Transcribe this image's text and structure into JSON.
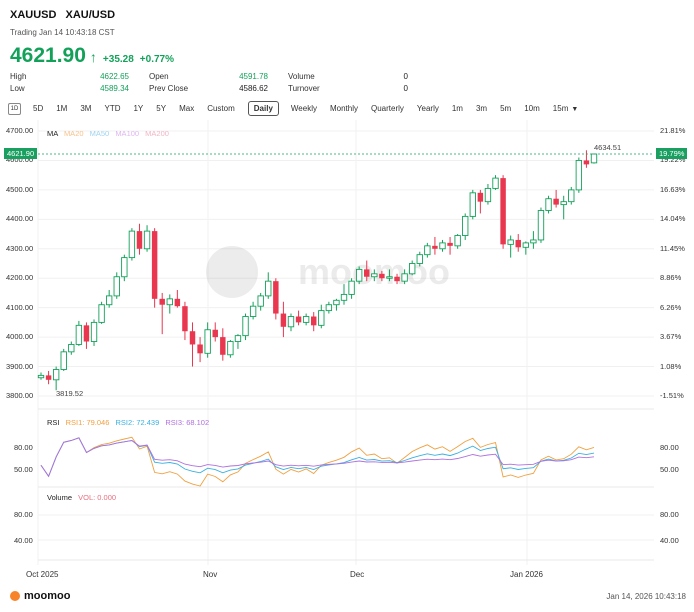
{
  "header": {
    "symbol": "XAUUSD",
    "name": "XAU/USD",
    "trading_status": "Trading Jan 14 10:43:18 CST",
    "price": "4621.90",
    "change": "+35.28",
    "change_pct": "+0.77%"
  },
  "stats": {
    "high_label": "High",
    "high": "4622.65",
    "low_label": "Low",
    "low": "4589.34",
    "open_label": "Open",
    "open": "4591.78",
    "prev_close_label": "Prev Close",
    "prev_close": "4586.62",
    "volume_label": "Volume",
    "volume": "0",
    "turnover_label": "Turnover",
    "turnover": "0"
  },
  "tabs": {
    "icon": "1D",
    "items": [
      "5D",
      "1M",
      "3M",
      "YTD",
      "1Y",
      "5Y",
      "Max",
      "Custom",
      "Daily",
      "Weekly",
      "Monthly",
      "Quarterly",
      "Yearly",
      "1m",
      "3m",
      "5m",
      "10m",
      "15m"
    ],
    "active": "Daily"
  },
  "main_chart": {
    "ma_label": "MA",
    "ma_items": [
      "MA20",
      "MA50",
      "MA100",
      "MA200"
    ],
    "y_ticks": [
      "4700.00",
      "4600.00",
      "4500.00",
      "4400.00",
      "4300.00",
      "4200.00",
      "4100.00",
      "4000.00",
      "3900.00",
      "3800.00"
    ],
    "right_ticks": [
      "21.81%",
      "19.22%",
      "16.63%",
      "14.04%",
      "11.45%",
      "8.86%",
      "6.26%",
      "3.67%",
      "1.08%",
      "-1.51%"
    ],
    "current_price_tag": "4621.90",
    "current_pct_tag": "19.79%",
    "high_marker": "4634.51",
    "low_marker": "3819.52",
    "watermark": "moomoo"
  },
  "rsi": {
    "label": "RSI",
    "rsi1": "RSI1: 79.046",
    "rsi2": "RSI2: 72.439",
    "rsi3": "RSI3: 68.102",
    "ticks": [
      "80.00",
      "50.00"
    ],
    "right_ticks": [
      "80.00",
      "50.00"
    ]
  },
  "volume": {
    "label": "Volume",
    "vol": "VOL: 0.000",
    "ticks": [
      "80.00",
      "40.00"
    ],
    "right_ticks": [
      "80.00",
      "40.00"
    ]
  },
  "x_axis": [
    "Oct 2025",
    "Nov",
    "Dec",
    "Jan 2026"
  ],
  "footer": {
    "brand": "moomoo",
    "timestamp": "Jan 14, 2026 10:43:18"
  },
  "colors": {
    "up": "#13a15a",
    "down": "#e8374f",
    "rsi1": "#f0a040",
    "rsi2": "#3ab0e0",
    "rsi3": "#b070e0"
  },
  "chart_data": {
    "type": "candlestick",
    "ylim": [
      3780,
      4720
    ],
    "candles": [
      {
        "o": 3862,
        "h": 3880,
        "l": 3855,
        "c": 3870
      },
      {
        "o": 3870,
        "h": 3885,
        "l": 3840,
        "c": 3855
      },
      {
        "o": 3855,
        "h": 3900,
        "l": 3819.52,
        "c": 3890
      },
      {
        "o": 3890,
        "h": 3960,
        "l": 3885,
        "c": 3950
      },
      {
        "o": 3950,
        "h": 3985,
        "l": 3940,
        "c": 3975
      },
      {
        "o": 3975,
        "h": 4055,
        "l": 3970,
        "c": 4040
      },
      {
        "o": 4040,
        "h": 4050,
        "l": 3960,
        "c": 3985
      },
      {
        "o": 3985,
        "h": 4060,
        "l": 3970,
        "c": 4050
      },
      {
        "o": 4050,
        "h": 4120,
        "l": 4045,
        "c": 4110
      },
      {
        "o": 4110,
        "h": 4160,
        "l": 4100,
        "c": 4140
      },
      {
        "o": 4140,
        "h": 4220,
        "l": 4130,
        "c": 4205
      },
      {
        "o": 4205,
        "h": 4280,
        "l": 4190,
        "c": 4270
      },
      {
        "o": 4270,
        "h": 4370,
        "l": 4260,
        "c": 4360
      },
      {
        "o": 4360,
        "h": 4385,
        "l": 4280,
        "c": 4300
      },
      {
        "o": 4300,
        "h": 4380,
        "l": 4290,
        "c": 4360
      },
      {
        "o": 4360,
        "h": 4370,
        "l": 4100,
        "c": 4130
      },
      {
        "o": 4130,
        "h": 4150,
        "l": 4010,
        "c": 4110
      },
      {
        "o": 4110,
        "h": 4145,
        "l": 4080,
        "c": 4130
      },
      {
        "o": 4130,
        "h": 4160,
        "l": 4100,
        "c": 4105
      },
      {
        "o": 4105,
        "h": 4120,
        "l": 3990,
        "c": 4020
      },
      {
        "o": 4020,
        "h": 4050,
        "l": 3900,
        "c": 3975
      },
      {
        "o": 3975,
        "h": 4000,
        "l": 3915,
        "c": 3945
      },
      {
        "o": 3945,
        "h": 4050,
        "l": 3930,
        "c": 4025
      },
      {
        "o": 4025,
        "h": 4050,
        "l": 3985,
        "c": 4000
      },
      {
        "o": 4000,
        "h": 4030,
        "l": 3920,
        "c": 3940
      },
      {
        "o": 3940,
        "h": 3990,
        "l": 3930,
        "c": 3985
      },
      {
        "o": 3985,
        "h": 4010,
        "l": 3960,
        "c": 4005
      },
      {
        "o": 4005,
        "h": 4080,
        "l": 3990,
        "c": 4070
      },
      {
        "o": 4070,
        "h": 4120,
        "l": 4060,
        "c": 4105
      },
      {
        "o": 4105,
        "h": 4150,
        "l": 4090,
        "c": 4140
      },
      {
        "o": 4140,
        "h": 4220,
        "l": 4130,
        "c": 4190
      },
      {
        "o": 4190,
        "h": 4200,
        "l": 4060,
        "c": 4080
      },
      {
        "o": 4080,
        "h": 4120,
        "l": 4000,
        "c": 4035
      },
      {
        "o": 4035,
        "h": 4080,
        "l": 4020,
        "c": 4070
      },
      {
        "o": 4070,
        "h": 4090,
        "l": 4040,
        "c": 4050
      },
      {
        "o": 4050,
        "h": 4080,
        "l": 4040,
        "c": 4070
      },
      {
        "o": 4070,
        "h": 4085,
        "l": 4020,
        "c": 4040
      },
      {
        "o": 4040,
        "h": 4110,
        "l": 4030,
        "c": 4090
      },
      {
        "o": 4090,
        "h": 4120,
        "l": 4080,
        "c": 4110
      },
      {
        "o": 4110,
        "h": 4130,
        "l": 4090,
        "c": 4125
      },
      {
        "o": 4125,
        "h": 4180,
        "l": 4110,
        "c": 4145
      },
      {
        "o": 4145,
        "h": 4200,
        "l": 4130,
        "c": 4190
      },
      {
        "o": 4190,
        "h": 4240,
        "l": 4180,
        "c": 4230
      },
      {
        "o": 4230,
        "h": 4260,
        "l": 4190,
        "c": 4205
      },
      {
        "o": 4205,
        "h": 4230,
        "l": 4190,
        "c": 4215
      },
      {
        "o": 4215,
        "h": 4225,
        "l": 4190,
        "c": 4200
      },
      {
        "o": 4200,
        "h": 4230,
        "l": 4190,
        "c": 4205
      },
      {
        "o": 4205,
        "h": 4215,
        "l": 4180,
        "c": 4190
      },
      {
        "o": 4190,
        "h": 4230,
        "l": 4180,
        "c": 4215
      },
      {
        "o": 4215,
        "h": 4260,
        "l": 4210,
        "c": 4250
      },
      {
        "o": 4250,
        "h": 4290,
        "l": 4240,
        "c": 4280
      },
      {
        "o": 4280,
        "h": 4320,
        "l": 4270,
        "c": 4310
      },
      {
        "o": 4310,
        "h": 4340,
        "l": 4280,
        "c": 4300
      },
      {
        "o": 4300,
        "h": 4330,
        "l": 4290,
        "c": 4320
      },
      {
        "o": 4320,
        "h": 4340,
        "l": 4280,
        "c": 4310
      },
      {
        "o": 4310,
        "h": 4350,
        "l": 4300,
        "c": 4345
      },
      {
        "o": 4345,
        "h": 4420,
        "l": 4330,
        "c": 4410
      },
      {
        "o": 4410,
        "h": 4500,
        "l": 4400,
        "c": 4490
      },
      {
        "o": 4490,
        "h": 4500,
        "l": 4420,
        "c": 4460
      },
      {
        "o": 4460,
        "h": 4520,
        "l": 4450,
        "c": 4505
      },
      {
        "o": 4505,
        "h": 4550,
        "l": 4500,
        "c": 4540
      },
      {
        "o": 4540,
        "h": 4550,
        "l": 4300,
        "c": 4315
      },
      {
        "o": 4315,
        "h": 4345,
        "l": 4270,
        "c": 4330
      },
      {
        "o": 4330,
        "h": 4350,
        "l": 4290,
        "c": 4305
      },
      {
        "o": 4305,
        "h": 4325,
        "l": 4280,
        "c": 4320
      },
      {
        "o": 4320,
        "h": 4360,
        "l": 4300,
        "c": 4330
      },
      {
        "o": 4330,
        "h": 4440,
        "l": 4320,
        "c": 4430
      },
      {
        "o": 4430,
        "h": 4480,
        "l": 4420,
        "c": 4470
      },
      {
        "o": 4470,
        "h": 4500,
        "l": 4440,
        "c": 4450
      },
      {
        "o": 4450,
        "h": 4480,
        "l": 4400,
        "c": 4460
      },
      {
        "o": 4460,
        "h": 4510,
        "l": 4450,
        "c": 4500
      },
      {
        "o": 4500,
        "h": 4610,
        "l": 4490,
        "c": 4600
      },
      {
        "o": 4600,
        "h": 4634.51,
        "l": 4575,
        "c": 4586.62
      },
      {
        "o": 4591.78,
        "h": 4622.65,
        "l": 4589.34,
        "c": 4621.9
      }
    ]
  }
}
